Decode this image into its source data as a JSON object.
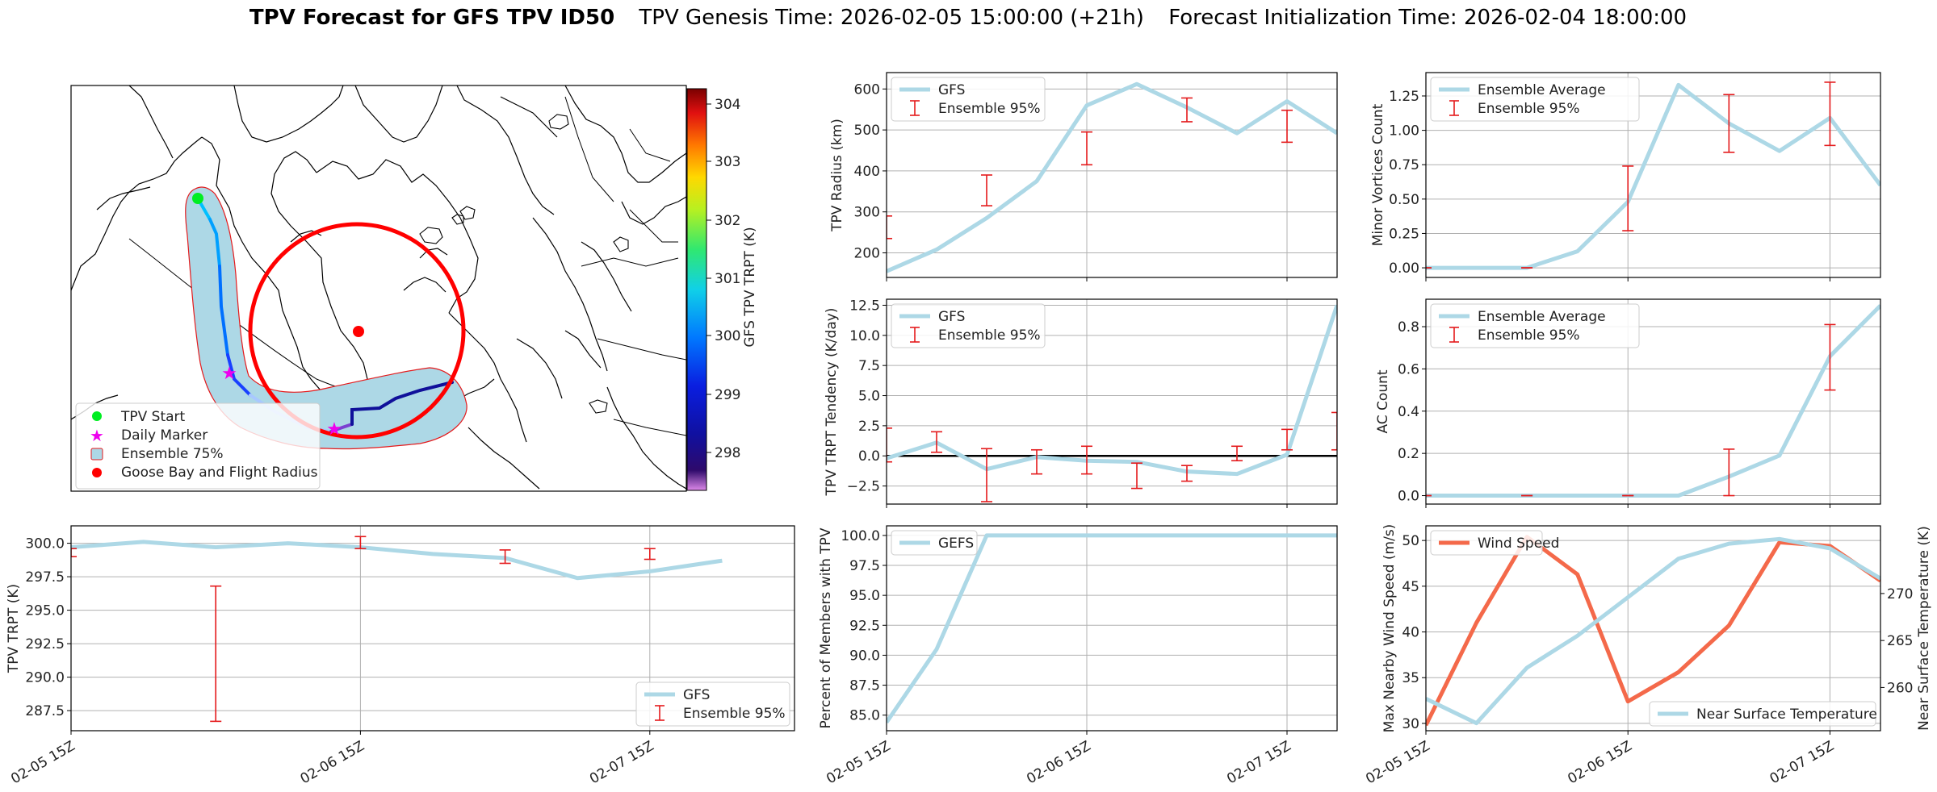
{
  "title": {
    "bold": "TPV Forecast for GFS TPV ID50",
    "genesis": "TPV Genesis Time: 2026-02-05 15:00:00 (+21h)",
    "init": "Forecast Initialization Time: 2026-02-04 18:00:00"
  },
  "map": {
    "legend": [
      "TPV Start",
      "Daily Marker",
      "Ensemble 75%",
      "Goose Bay and Flight Radius"
    ],
    "colorbar": {
      "label": "GFS TPV TRPT (K)",
      "ticks": [
        "304",
        "303",
        "302",
        "301",
        "300",
        "299",
        "298"
      ]
    }
  },
  "colors": {
    "gfs": "#add8e6",
    "ensemble": "#e41a1c",
    "wind": "#f4694a",
    "temp_axis": "#4169e1",
    "zero_line": "#000000"
  },
  "chart_data": [
    {
      "id": "tpv_radius",
      "type": "line",
      "ylabel": "TPV Radius (km)",
      "x": [
        0,
        6,
        12,
        18,
        24,
        30,
        36,
        42,
        48,
        54
      ],
      "series": [
        {
          "name": "GFS",
          "values": [
            155,
            208,
            285,
            375,
            560,
            612,
            555,
            492,
            570,
            492
          ]
        }
      ],
      "error_bars": {
        "name": "Ensemble 95%",
        "x": [
          0,
          12,
          24,
          36,
          48
        ],
        "low": [
          235,
          315,
          415,
          520,
          470
        ],
        "high": [
          290,
          390,
          495,
          578,
          548
        ]
      },
      "ylim": [
        140,
        640
      ],
      "yticks": [
        200,
        300,
        400,
        500,
        600
      ],
      "ytick_labels": [
        "200",
        "300",
        "400",
        "500",
        "600"
      ],
      "legend": [
        "GFS",
        "Ensemble 95%"
      ]
    },
    {
      "id": "minor_vortices",
      "type": "line",
      "ylabel": "Minor Vortices Count",
      "x": [
        0,
        6,
        12,
        18,
        24,
        30,
        36,
        42,
        48,
        54
      ],
      "series": [
        {
          "name": "Ensemble Average",
          "values": [
            0,
            0,
            0,
            0.12,
            0.48,
            1.33,
            1.05,
            0.85,
            1.09,
            0.6
          ]
        }
      ],
      "error_bars": {
        "name": "Ensemble 95%",
        "x": [
          0,
          12,
          24,
          36,
          48
        ],
        "low": [
          0,
          0,
          0.27,
          0.84,
          0.89
        ],
        "high": [
          0,
          0,
          0.74,
          1.26,
          1.35
        ]
      },
      "ylim": [
        -0.07,
        1.42
      ],
      "yticks": [
        0,
        0.25,
        0.5,
        0.75,
        1,
        1.25
      ],
      "ytick_labels": [
        "0.00",
        "0.25",
        "0.50",
        "0.75",
        "1.00",
        "1.25"
      ],
      "legend": [
        "Ensemble Average",
        "Ensemble 95%"
      ]
    },
    {
      "id": "trpt_tendency",
      "type": "line",
      "ylabel": "TPV TRPT Tendency (K/day)",
      "x": [
        0,
        6,
        12,
        18,
        24,
        30,
        36,
        42,
        48,
        54
      ],
      "series": [
        {
          "name": "GFS",
          "values": [
            -0.2,
            1.1,
            -1.1,
            -0.1,
            -0.4,
            -0.5,
            -1.3,
            -1.5,
            0.1,
            12.5
          ]
        }
      ],
      "error_bars": {
        "name": "Ensemble 95%",
        "x": [
          0,
          6,
          12,
          18,
          24,
          30,
          36,
          42,
          48,
          54
        ],
        "low": [
          -0.5,
          0.3,
          -3.8,
          -1.5,
          -1.5,
          -2.7,
          -2.1,
          -0.4,
          0.5,
          0.5
        ],
        "high": [
          2.3,
          2.0,
          0.6,
          0.5,
          0.8,
          -0.6,
          -0.8,
          0.8,
          2.2,
          3.6
        ]
      },
      "ylim": [
        -4,
        13
      ],
      "yticks": [
        -2.5,
        0,
        2.5,
        5,
        7.5,
        10,
        12.5
      ],
      "ytick_labels": [
        "−2.5",
        "0.0",
        "2.5",
        "5.0",
        "7.5",
        "10.0",
        "12.5"
      ],
      "hline": 0,
      "legend": [
        "GFS",
        "Ensemble 95%"
      ]
    },
    {
      "id": "ac_count",
      "type": "line",
      "ylabel": "AC Count",
      "x": [
        0,
        6,
        12,
        18,
        24,
        30,
        36,
        42,
        48,
        54
      ],
      "series": [
        {
          "name": "Ensemble Average",
          "values": [
            0,
            0,
            0,
            0,
            0,
            0,
            0.09,
            0.19,
            0.66,
            0.9
          ]
        }
      ],
      "error_bars": {
        "name": "Ensemble 95%",
        "x": [
          0,
          12,
          24,
          36,
          48
        ],
        "low": [
          0,
          0,
          0,
          0,
          0.5
        ],
        "high": [
          0,
          0,
          0,
          0.22,
          0.81
        ]
      },
      "ylim": [
        -0.04,
        0.93
      ],
      "yticks": [
        0,
        0.2,
        0.4,
        0.6,
        0.8
      ],
      "ytick_labels": [
        "0.0",
        "0.2",
        "0.4",
        "0.6",
        "0.8"
      ],
      "legend": [
        "Ensemble Average",
        "Ensemble 95%"
      ]
    },
    {
      "id": "trpt",
      "type": "line",
      "ylabel": "TPV TRPT (K)",
      "x": [
        0,
        6,
        12,
        18,
        24,
        30,
        36,
        42,
        48,
        54
      ],
      "series": [
        {
          "name": "GFS",
          "values": [
            299.7,
            300.1,
            299.7,
            300.0,
            299.7,
            299.2,
            298.9,
            297.4,
            297.9,
            298.7
          ]
        }
      ],
      "error_bars": {
        "name": "Ensemble 95%",
        "x": [
          0,
          12,
          24,
          36,
          48
        ],
        "low": [
          299.0,
          286.7,
          299.6,
          298.5,
          298.8
        ],
        "high": [
          299.6,
          296.8,
          300.5,
          299.5,
          299.6
        ]
      },
      "ylim": [
        286.0,
        301.3
      ],
      "yticks": [
        287.5,
        290,
        292.5,
        295,
        297.5,
        300
      ],
      "ytick_labels": [
        "287.5",
        "290.0",
        "292.5",
        "295.0",
        "297.5",
        "300.0"
      ],
      "legend": [
        "GFS",
        "Ensemble 95%"
      ]
    },
    {
      "id": "percent_members",
      "type": "line",
      "ylabel": "Percent of Members with TPV",
      "x": [
        0,
        6,
        12,
        18,
        24,
        30,
        36,
        42,
        48,
        54
      ],
      "series": [
        {
          "name": "GEFS",
          "values": [
            84.4,
            90.5,
            100,
            100,
            100,
            100,
            100,
            100,
            100,
            100
          ]
        }
      ],
      "ylim": [
        83.7,
        100.8
      ],
      "yticks": [
        85,
        87.5,
        90,
        92.5,
        95,
        97.5,
        100
      ],
      "ytick_labels": [
        "85.0",
        "87.5",
        "90.0",
        "92.5",
        "95.0",
        "97.5",
        "100.0"
      ],
      "legend": [
        "GEFS"
      ]
    },
    {
      "id": "wind_temp",
      "type": "line",
      "ylabel": "Max Nearby Wind Speed (m/s)",
      "y2label": "Near Surface Temperature (K)",
      "x": [
        0,
        6,
        12,
        18,
        24,
        30,
        36,
        42,
        48,
        54
      ],
      "series": [
        {
          "name": "Wind Speed",
          "axis": "left",
          "values": [
            29.8,
            41.0,
            50.4,
            46.3,
            32.4,
            35.6,
            40.7,
            49.8,
            49.4,
            45.6
          ]
        },
        {
          "name": "Near Surface Temperature",
          "axis": "right",
          "values": [
            258.8,
            256.2,
            262.1,
            265.5,
            269.6,
            273.7,
            275.3,
            275.8,
            274.8,
            271.6
          ]
        }
      ],
      "ylim": [
        29.2,
        51.6
      ],
      "yticks": [
        30,
        35,
        40,
        45,
        50
      ],
      "ytick_labels": [
        "30",
        "35",
        "40",
        "45",
        "50"
      ],
      "y2lim": [
        255.4,
        277.2
      ],
      "y2ticks": [
        260,
        265,
        270
      ],
      "y2tick_labels": [
        "260",
        "265",
        "270"
      ],
      "legend": [
        "Wind Speed",
        "Near Surface Temperature"
      ]
    }
  ],
  "xticks": [
    "02-05 15Z",
    "02-06 15Z",
    "02-07 15Z"
  ]
}
